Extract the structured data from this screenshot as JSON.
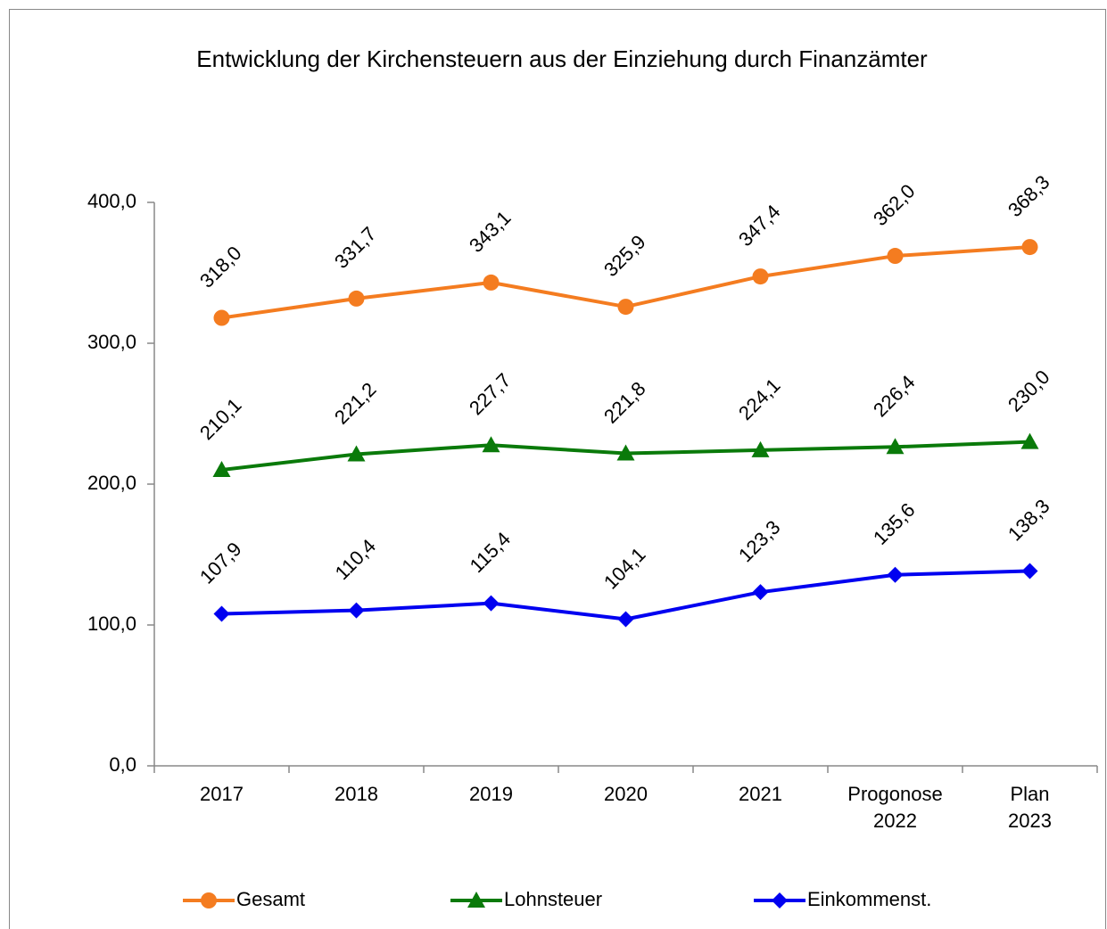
{
  "chart_data": {
    "type": "line",
    "title": "Entwicklung der Kirchensteuern aus der Einziehung durch Finanzämter",
    "categories": [
      "2017",
      "2018",
      "2019",
      "2020",
      "2021",
      "Progonose\n2022",
      "Plan\n2023"
    ],
    "series": [
      {
        "name": "Gesamt",
        "color": "#f47c20",
        "marker": "circle",
        "values": [
          318.0,
          331.7,
          343.1,
          325.9,
          347.4,
          362.0,
          368.3
        ],
        "value_labels": [
          "318,0",
          "331,7",
          "343,1",
          "325,9",
          "347,4",
          "362,0",
          "368,3"
        ]
      },
      {
        "name": "Lohnsteuer",
        "color": "#0a7a0a",
        "marker": "triangle",
        "values": [
          210.1,
          221.2,
          227.7,
          221.8,
          224.1,
          226.4,
          230.0
        ],
        "value_labels": [
          "210,1",
          "221,2",
          "227,7",
          "221,8",
          "224,1",
          "226,4",
          "230,0"
        ]
      },
      {
        "name": "Einkommenst.",
        "color": "#0000f0",
        "marker": "diamond",
        "values": [
          107.9,
          110.4,
          115.4,
          104.1,
          123.3,
          135.6,
          138.3
        ],
        "value_labels": [
          "107,9",
          "110,4",
          "115,4",
          "104,1",
          "123,3",
          "135,6",
          "138,3"
        ]
      }
    ],
    "ylim": [
      0,
      400
    ],
    "yticks": [
      {
        "value": 0,
        "label": "0,0"
      },
      {
        "value": 100,
        "label": "100,0"
      },
      {
        "value": 200,
        "label": "200,0"
      },
      {
        "value": 300,
        "label": "300,0"
      },
      {
        "value": 400,
        "label": "400,0"
      }
    ],
    "grid": false,
    "legend": "bottom"
  }
}
